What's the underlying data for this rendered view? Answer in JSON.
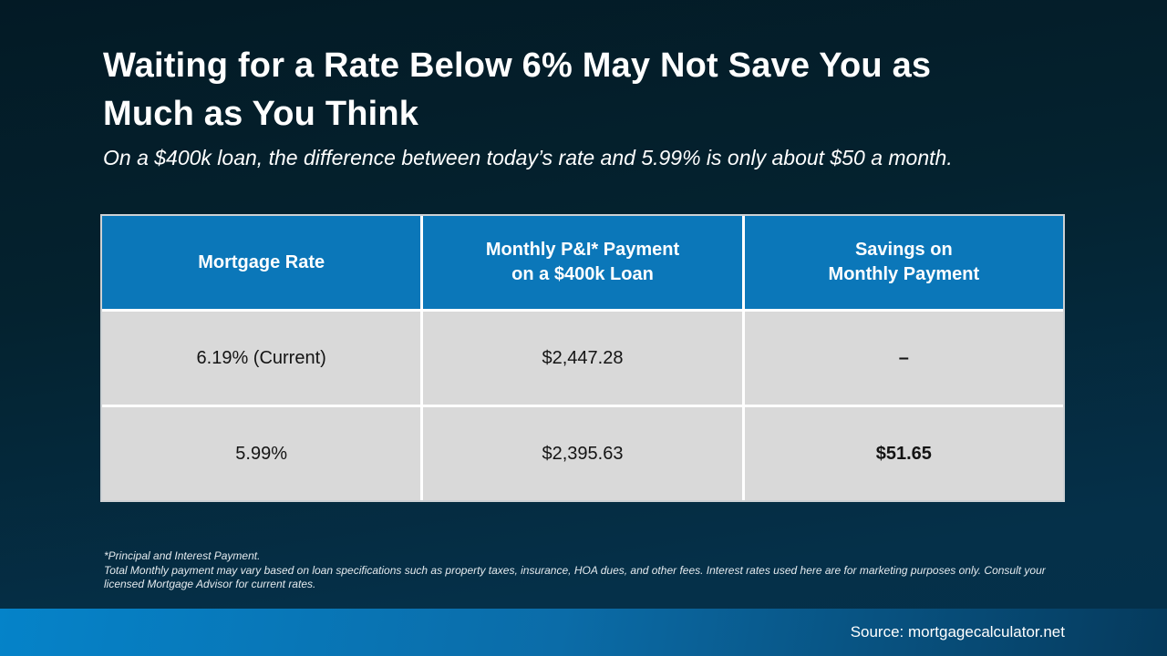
{
  "theme": {
    "bg_top": "#031a25",
    "bg_bottom": "#04304a",
    "header_blue": "#0b77b9",
    "cell_gray": "#d9d9d9",
    "table_border": "#cdd1d4",
    "footer_gradient_left": "#0583c9",
    "footer_gradient_right": "#053a5c",
    "text_white": "#ffffff"
  },
  "header": {
    "title": "Waiting for a Rate Below 6% May Not Save You as\nMuch as You Think",
    "subtitle": "On a $400k loan, the difference between today’s rate and 5.99% is only about $50 a month."
  },
  "table": {
    "headers": [
      "Mortgage Rate",
      "Monthly P&I* Payment\non a $400k Loan",
      "Savings on\nMonthly Payment"
    ],
    "rows": [
      {
        "cells": [
          "6.19% (Current)",
          "$2,447.28",
          "–"
        ]
      },
      {
        "cells": [
          "5.99%",
          "$2,395.63",
          "$51.65"
        ]
      }
    ]
  },
  "footnote": {
    "line1": "*Principal and Interest Payment.",
    "line2": "Total Monthly payment may vary based on loan specifications such as property taxes, insurance, HOA dues, and other fees. Interest rates used here are for marketing purposes only. Consult your licensed Mortgage Advisor for current rates."
  },
  "footer": {
    "source": "Source: mortgagecalculator.net"
  }
}
